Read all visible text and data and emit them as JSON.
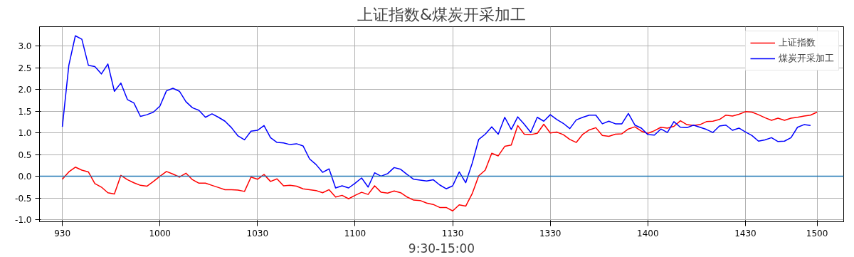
{
  "chart_data": {
    "type": "line",
    "title": "上证指数&煤炭开采加工",
    "xlabel": "9:30-15:00",
    "categories": [
      "930",
      null,
      null,
      null,
      null,
      null,
      null,
      null,
      null,
      null,
      null,
      null,
      null,
      null,
      null,
      "1000",
      null,
      null,
      null,
      null,
      null,
      null,
      null,
      null,
      null,
      null,
      null,
      null,
      null,
      null,
      "1030",
      null,
      null,
      null,
      null,
      null,
      null,
      null,
      null,
      null,
      null,
      null,
      null,
      null,
      null,
      "1100",
      null,
      null,
      null,
      null,
      null,
      null,
      null,
      null,
      null,
      null,
      null,
      null,
      null,
      null,
      "1130",
      null,
      null,
      null,
      null,
      null,
      null,
      null,
      null,
      null,
      null,
      null,
      null,
      null,
      null,
      "1330",
      null,
      null,
      null,
      null,
      null,
      null,
      null,
      null,
      null,
      null,
      null,
      null,
      null,
      null,
      "1400",
      null,
      null,
      null,
      null,
      null,
      null,
      null,
      null,
      null,
      null,
      null,
      null,
      null,
      null,
      "1430",
      null,
      null,
      null,
      null,
      null,
      null,
      null,
      null,
      null,
      null,
      "1500"
    ],
    "ylim": [
      -1.05,
      3.45
    ],
    "yticks": [
      {
        "value": -1,
        "label": "-1.0"
      },
      {
        "value": -0.5,
        "label": "-0.5"
      },
      {
        "value": 0,
        "label": "0.0"
      },
      {
        "value": 0.5,
        "label": "0.5"
      },
      {
        "value": 1,
        "label": "1.0"
      },
      {
        "value": 1.5,
        "label": "1.5"
      },
      {
        "value": 2,
        "label": "2.0"
      },
      {
        "value": 2.5,
        "label": "2.5"
      },
      {
        "value": 3,
        "label": "3.0"
      }
    ],
    "grid": true,
    "legend": "top right",
    "ref_lines": [
      {
        "axis": "y",
        "value": 0,
        "color": "#1f77b4"
      }
    ],
    "series": [
      {
        "name": "上证指数",
        "color": "#ff0000",
        "values": [
          -0.07,
          0.1,
          0.21,
          0.14,
          0.1,
          -0.17,
          -0.25,
          -0.38,
          -0.41,
          0.02,
          -0.08,
          -0.15,
          -0.21,
          -0.23,
          -0.12,
          0,
          0.11,
          0.05,
          -0.02,
          0.07,
          -0.08,
          -0.16,
          -0.16,
          -0.21,
          -0.26,
          -0.31,
          -0.31,
          -0.32,
          -0.35,
          -0.02,
          -0.07,
          0.04,
          -0.12,
          -0.06,
          -0.22,
          -0.21,
          -0.23,
          -0.29,
          -0.31,
          -0.33,
          -0.38,
          -0.31,
          -0.48,
          -0.44,
          -0.52,
          -0.44,
          -0.37,
          -0.42,
          -0.22,
          -0.37,
          -0.39,
          -0.34,
          -0.38,
          -0.48,
          -0.55,
          -0.56,
          -0.62,
          -0.65,
          -0.72,
          -0.72,
          -0.8,
          -0.66,
          -0.69,
          -0.4,
          0.01,
          0.14,
          0.53,
          0.47,
          0.69,
          0.72,
          1.17,
          0.97,
          0.96,
          0.99,
          1.2,
          1.0,
          1.02,
          0.96,
          0.85,
          0.78,
          0.97,
          1.07,
          1.12,
          0.94,
          0.92,
          0.97,
          0.98,
          1.09,
          1.14,
          1.04,
          0.99,
          1.05,
          1.13,
          1.11,
          1.15,
          1.28,
          1.19,
          1.17,
          1.19,
          1.26,
          1.27,
          1.31,
          1.41,
          1.39,
          1.43,
          1.49,
          1.48,
          1.42,
          1.35,
          1.29,
          1.34,
          1.29,
          1.34,
          1.36,
          1.39,
          1.41,
          1.48
        ]
      },
      {
        "name": "煤炭开采加工",
        "color": "#0000ff",
        "values": [
          1.14,
          2.56,
          3.24,
          3.16,
          2.56,
          2.53,
          2.36,
          2.59,
          1.96,
          2.15,
          1.77,
          1.69,
          1.38,
          1.42,
          1.48,
          1.62,
          1.97,
          2.03,
          1.96,
          1.72,
          1.58,
          1.52,
          1.36,
          1.44,
          1.36,
          1.27,
          1.12,
          0.93,
          0.84,
          1.04,
          1.06,
          1.17,
          0.89,
          0.78,
          0.77,
          0.73,
          0.75,
          0.7,
          0.4,
          0.27,
          0.09,
          0.17,
          -0.27,
          -0.22,
          -0.27,
          -0.16,
          -0.04,
          -0.25,
          0.08,
          0,
          0.06,
          0.2,
          0.16,
          0.04,
          -0.07,
          -0.09,
          -0.11,
          -0.08,
          -0.2,
          -0.29,
          -0.22,
          0.1,
          -0.15,
          0.3,
          0.85,
          0.97,
          1.14,
          0.97,
          1.36,
          1.08,
          1.37,
          1.2,
          1.01,
          1.36,
          1.27,
          1.42,
          1.31,
          1.22,
          1.1,
          1.3,
          1.36,
          1.41,
          1.41,
          1.21,
          1.27,
          1.21,
          1.21,
          1.45,
          1.18,
          1.11,
          0.96,
          0.95,
          1.09,
          1.01,
          1.26,
          1.13,
          1.12,
          1.18,
          1.13,
          1.08,
          1.01,
          1.16,
          1.18,
          1.06,
          1.11,
          1.02,
          0.94,
          0.81,
          0.84,
          0.89,
          0.8,
          0.81,
          0.89,
          1.13,
          1.19,
          1.17,
          null
        ]
      }
    ]
  }
}
